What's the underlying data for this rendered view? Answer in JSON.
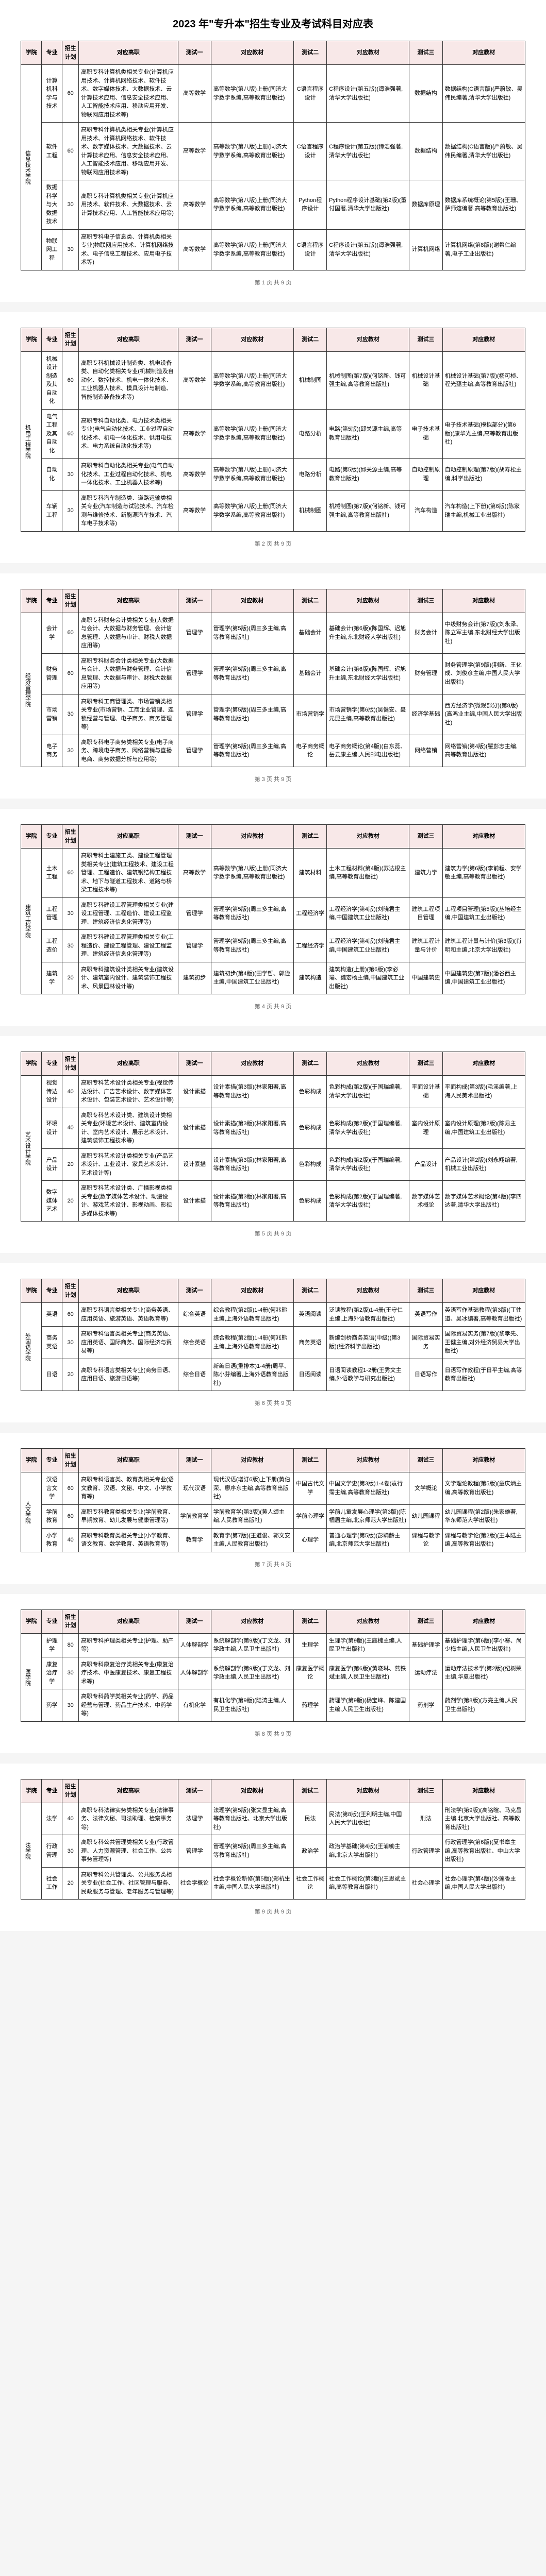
{
  "doc_title": "2023 年\"专升本\"招生专业及考试科目对应表",
  "headers": [
    "学院",
    "专业",
    "招生计划",
    "对应高职",
    "测试一",
    "对应教材",
    "测试二",
    "对应教材",
    "测试三",
    "对应教材"
  ],
  "page_label_prefix": "第 ",
  "page_label_suffix": " 页 共 9 页",
  "colors": {
    "header_bg": "#f8e8e8",
    "border": "#333333"
  },
  "tables": [
    {
      "page": 1,
      "school": "信息技术学院",
      "rows": [
        {
          "major": "计算机科学与技术",
          "plan": "60",
          "scope": "高职专科计算机类相关专业(计算机应用技术、计算机网络技术、软件技术、数字媒体技术、大数据技术、云计算技术应用、信息安全技术应用、人工智能技术应用、移动应用开发、物联网应用技术等)",
          "s1": "高等数学",
          "b1": "高等数学(第八版)上册(同济大学数学系编,高等教育出版社)",
          "s2": "C语言程序设计",
          "b2": "C程序设计(第五版)(谭浩强著,清华大学出版社)",
          "s3": "数据结构",
          "b3": "数据结构(C语言版)(严蔚敏、吴伟民编著,清华大学出版社)"
        },
        {
          "major": "软件工程",
          "plan": "60",
          "scope": "高职专科计算机类相关专业(计算机应用技术、计算机网络技术、软件技术、数字媒体技术、大数据技术、云计算技术应用、信息安全技术应用、人工智能技术应用、移动应用开发、物联网应用技术等)",
          "s1": "高等数学",
          "b1": "高等数学(第八版)上册(同济大学数学系编,高等教育出版社)",
          "s2": "C语言程序设计",
          "b2": "C程序设计(第五版)(谭浩强著,清华大学出版社)",
          "s3": "数据结构",
          "b3": "数据结构(C语言版)(严蔚敏、吴伟民编著,清华大学出版社)"
        },
        {
          "major": "数据科学与大数据技术",
          "plan": "30",
          "scope": "高职专科计算机类相关专业(计算机应用技术、软件技术、大数据技术、云计算技术应用、人工智能技术应用等)",
          "s1": "高等数学",
          "b1": "高等数学(第八版)上册(同济大学数学系编,高等教育出版社)",
          "s2": "Python程序设计",
          "b2": "Python程序设计基础(第2版)(董付国著,清华大学出版社)",
          "s3": "数据库原理",
          "b3": "数据库系统概论(第5版)(王珊、萨师煊编著,高等教育出版社)"
        },
        {
          "major": "物联网工程",
          "plan": "30",
          "scope": "高职专科电子信息类、计算机类相关专业(物联网应用技术、计算机网络技术、电子信息工程技术、应用电子技术等)",
          "s1": "高等数学",
          "b1": "高等数学(第八版)上册(同济大学数学系编,高等教育出版社)",
          "s2": "C语言程序设计",
          "b2": "C程序设计(第五版)(谭浩强著,清华大学出版社)",
          "s3": "计算机网络",
          "b3": "计算机网络(第8版)(谢希仁编著,电子工业出版社)"
        }
      ]
    },
    {
      "page": 2,
      "school": "机电工程学院",
      "rows": [
        {
          "major": "机械设计制造及其自动化",
          "plan": "60",
          "scope": "高职专科机械设计制造类、机电设备类、自动化类相关专业(机械制造及自动化、数控技术、机电一体化技术、工业机器人技术、模具设计与制造、智能制造装备技术等)",
          "s1": "高等数学",
          "b1": "高等数学(第八版)上册(同济大学数学系编,高等教育出版社)",
          "s2": "机械制图",
          "b2": "机械制图(第7版)(何铭新、钱可强主编,高等教育出版社)",
          "s3": "机械设计基础",
          "b3": "机械设计基础(第7版)(杨可桢、程光蕴主编,高等教育出版社)"
        },
        {
          "major": "电气工程及其自动化",
          "plan": "60",
          "scope": "高职专科自动化类、电力技术类相关专业(电气自动化技术、工业过程自动化技术、机电一体化技术、供用电技术、电力系统自动化技术等)",
          "s1": "高等数学",
          "b1": "高等数学(第八版)上册(同济大学数学系编,高等教育出版社)",
          "s2": "电路分析",
          "b2": "电路(第5版)(邱关源主编,高等教育出版社)",
          "s3": "电子技术基础",
          "b3": "电子技术基础(模拟部分)(第6版)(康华光主编,高等教育出版社)"
        },
        {
          "major": "自动化",
          "plan": "30",
          "scope": "高职专科自动化类相关专业(电气自动化技术、工业过程自动化技术、机电一体化技术、工业机器人技术等)",
          "s1": "高等数学",
          "b1": "高等数学(第八版)上册(同济大学数学系编,高等教育出版社)",
          "s2": "电路分析",
          "b2": "电路(第5版)(邱关源主编,高等教育出版社)",
          "s3": "自动控制原理",
          "b3": "自动控制原理(第7版)(胡寿松主编,科学出版社)"
        },
        {
          "major": "车辆工程",
          "plan": "30",
          "scope": "高职专科汽车制造类、道路运输类相关专业(汽车制造与试验技术、汽车检测与维修技术、新能源汽车技术、汽车电子技术等)",
          "s1": "高等数学",
          "b1": "高等数学(第八版)上册(同济大学数学系编,高等教育出版社)",
          "s2": "机械制图",
          "b2": "机械制图(第7版)(何铭新、钱可强主编,高等教育出版社)",
          "s3": "汽车构造",
          "b3": "汽车构造(上下册)(第6版)(陈家瑞主编,机械工业出版社)"
        }
      ]
    },
    {
      "page": 3,
      "school": "经济管理学院",
      "rows": [
        {
          "major": "会计学",
          "plan": "60",
          "scope": "高职专科财务会计类相关专业(大数据与会计、大数据与财务管理、会计信息管理、大数据与审计、财税大数据应用等)",
          "s1": "管理学",
          "b1": "管理学(第5版)(周三多主编,高等教育出版社)",
          "s2": "基础会计",
          "b2": "基础会计(第6版)(陈国辉、迟旭升主编,东北财经大学出版社)",
          "s3": "财务会计",
          "b3": "中级财务会计(第7版)(刘永泽、陈立军主编,东北财经大学出版社)"
        },
        {
          "major": "财务管理",
          "plan": "60",
          "scope": "高职专科财务会计类相关专业(大数据与会计、大数据与财务管理、会计信息管理、大数据与审计、财税大数据应用等)",
          "s1": "管理学",
          "b1": "管理学(第5版)(周三多主编,高等教育出版社)",
          "s2": "基础会计",
          "b2": "基础会计(第6版)(陈国辉、迟旭升主编,东北财经大学出版社)",
          "s3": "财务管理",
          "b3": "财务管理学(第9版)(荆新、王化成、刘俊彦主编,中国人民大学出版社)"
        },
        {
          "major": "市场营销",
          "plan": "30",
          "scope": "高职专科工商管理类、市场营销类相关专业(市场营销、工商企业管理、连锁经营与管理、电子商务、商务管理等)",
          "s1": "管理学",
          "b1": "管理学(第5版)(周三多主编,高等教育出版社)",
          "s2": "市场营销学",
          "b2": "市场营销学(第6版)(吴健安、聂元昆主编,高等教育出版社)",
          "s3": "经济学基础",
          "b3": "西方经济学(微观部分)(第8版)(高鸿业主编,中国人民大学出版社)"
        },
        {
          "major": "电子商务",
          "plan": "30",
          "scope": "高职专科电子商务类相关专业(电子商务、跨境电子商务、网络营销与直播电商、商务数据分析与应用等)",
          "s1": "管理学",
          "b1": "管理学(第5版)(周三多主编,高等教育出版社)",
          "s2": "电子商务概论",
          "b2": "电子商务概论(第4版)(白东蕊、岳云康主编,人民邮电出版社)",
          "s3": "网络营销",
          "b3": "网络营销(第4版)(瞿彭志主编,高等教育出版社)"
        }
      ]
    },
    {
      "page": 4,
      "school": "建筑工程学院",
      "rows": [
        {
          "major": "土木工程",
          "plan": "60",
          "scope": "高职专科土建施工类、建设工程管理类相关专业(建筑工程技术、建设工程管理、工程造价、建筑钢结构工程技术、地下与隧道工程技术、道路与桥梁工程技术等)",
          "s1": "高等数学",
          "b1": "高等数学(第八版)上册(同济大学数学系编,高等教育出版社)",
          "s2": "建筑材料",
          "b2": "土木工程材料(第4版)(苏达根主编,高等教育出版社)",
          "s3": "建筑力学",
          "b3": "建筑力学(第6版)(李前程、安学敏主编,高等教育出版社)"
        },
        {
          "major": "工程管理",
          "plan": "30",
          "scope": "高职专科建设工程管理类相关专业(建设工程管理、工程造价、建设工程监理、建筑经济信息化管理等)",
          "s1": "管理学",
          "b1": "管理学(第5版)(周三多主编,高等教育出版社)",
          "s2": "工程经济学",
          "b2": "工程经济学(第4版)(刘晓君主编,中国建筑工业出版社)",
          "s3": "建筑工程项目管理",
          "b3": "工程项目管理(第5版)(丛培经主编,中国建筑工业出版社)"
        },
        {
          "major": "工程造价",
          "plan": "30",
          "scope": "高职专科建设工程管理类相关专业(工程造价、建设工程管理、建设工程监理、建筑经济信息化管理等)",
          "s1": "管理学",
          "b1": "管理学(第5版)(周三多主编,高等教育出版社)",
          "s2": "工程经济学",
          "b2": "工程经济学(第4版)(刘晓君主编,中国建筑工业出版社)",
          "s3": "建筑工程计量与计价",
          "b3": "建筑工程计量与计价(第3版)(肖明和主编,北京大学出版社)"
        },
        {
          "major": "建筑学",
          "plan": "20",
          "scope": "高职专科建筑设计类相关专业(建筑设计、建筑室内设计、建筑装饰工程技术、风景园林设计等)",
          "s1": "建筑初步",
          "b1": "建筑初步(第4版)(田学哲、郭逊主编,中国建筑工业出版社)",
          "s2": "建筑构造",
          "b2": "建筑构造(上册)(第6版)(李必瑜、魏宏杨主编,中国建筑工业出版社)",
          "s3": "中国建筑史",
          "b3": "中国建筑史(第7版)(潘谷西主编,中国建筑工业出版社)"
        }
      ]
    },
    {
      "page": 5,
      "school": "艺术设计学院",
      "rows": [
        {
          "major": "视觉传达设计",
          "plan": "40",
          "scope": "高职专科艺术设计类相关专业(视觉传达设计、广告艺术设计、数字媒体艺术设计、包装艺术设计、艺术设计等)",
          "s1": "设计素描",
          "b1": "设计素描(第3版)(林家阳著,高等教育出版社)",
          "s2": "色彩构成",
          "b2": "色彩构成(第2版)(于国瑞编著,清华大学出版社)",
          "s3": "平面设计基础",
          "b3": "平面构成(第3版)(毛溪编著,上海人民美术出版社)"
        },
        {
          "major": "环境设计",
          "plan": "40",
          "scope": "高职专科艺术设计类、建筑设计类相关专业(环境艺术设计、建筑室内设计、室内艺术设计、展示艺术设计、建筑装饰工程技术等)",
          "s1": "设计素描",
          "b1": "设计素描(第3版)(林家阳著,高等教育出版社)",
          "s2": "色彩构成",
          "b2": "色彩构成(第2版)(于国瑞编著,清华大学出版社)",
          "s3": "室内设计原理",
          "b3": "室内设计原理(第2版)(陈易主编,中国建筑工业出版社)"
        },
        {
          "major": "产品设计",
          "plan": "20",
          "scope": "高职专科艺术设计类相关专业(产品艺术设计、工业设计、家具艺术设计、艺术设计等)",
          "s1": "设计素描",
          "b1": "设计素描(第3版)(林家阳著,高等教育出版社)",
          "s2": "色彩构成",
          "b2": "色彩构成(第2版)(于国瑞编著,清华大学出版社)",
          "s3": "产品设计",
          "b3": "产品设计(第2版)(刘永翔编著,机械工业出版社)"
        },
        {
          "major": "数字媒体艺术",
          "plan": "20",
          "scope": "高职专科艺术设计类、广播影视类相关专业(数字媒体艺术设计、动漫设计、游戏艺术设计、影视动画、影视多媒体技术等)",
          "s1": "设计素描",
          "b1": "设计素描(第3版)(林家阳著,高等教育出版社)",
          "s2": "色彩构成",
          "b2": "色彩构成(第2版)(于国瑞编著,清华大学出版社)",
          "s3": "数字媒体艺术概论",
          "b3": "数字媒体艺术概论(第4版)(李四达著,清华大学出版社)"
        }
      ]
    },
    {
      "page": 6,
      "school": "外国语学院",
      "rows": [
        {
          "major": "英语",
          "plan": "60",
          "scope": "高职专科语言类相关专业(商务英语、应用英语、旅游英语、英语教育等)",
          "s1": "综合英语",
          "b1": "综合教程(第2版)1-4册(何兆熊主编,上海外语教育出版社)",
          "s2": "英语阅读",
          "b2": "泛读教程(第2版)1-4册(王守仁主编,上海外语教育出版社)",
          "s3": "英语写作",
          "b3": "英语写作基础教程(第3版)(丁往道、吴冰编著,高等教育出版社)"
        },
        {
          "major": "商务英语",
          "plan": "30",
          "scope": "高职专科语言类相关专业(商务英语、应用英语、国际商务、国际经济与贸易等)",
          "s1": "综合英语",
          "b1": "综合教程(第2版)1-4册(何兆熊主编,上海外语教育出版社)",
          "s2": "商务英语",
          "b2": "新编剑桥商务英语(中级)(第3版)(经济科学出版社)",
          "s3": "国际贸易实务",
          "b3": "国际贸易实务(第7版)(黎孝先、王健主编,对外经济贸易大学出版社)"
        },
        {
          "major": "日语",
          "plan": "20",
          "scope": "高职专科语言类相关专业(商务日语、应用日语、旅游日语等)",
          "s1": "综合日语",
          "b1": "新编日语(重排本)1-4册(周平、陈小芬编著,上海外语教育出版社)",
          "s2": "日语阅读",
          "b2": "日语阅读教程1-2册(王秀文主编,外语教学与研究出版社)",
          "s3": "日语写作",
          "b3": "日语写作教程(于日平主编,高等教育出版社)"
        }
      ]
    },
    {
      "page": 7,
      "school": "人文学院",
      "rows": [
        {
          "major": "汉语言文学",
          "plan": "60",
          "scope": "高职专科语言类、教育类相关专业(语文教育、汉语、文秘、中文、小学教育等)",
          "s1": "现代汉语",
          "b1": "现代汉语(增订6版)上下册(黄伯荣、廖序东主编,高等教育出版社)",
          "s2": "中国古代文学",
          "b2": "中国文学史(第3版)1-4卷(袁行霈主编,高等教育出版社)",
          "s3": "文学概论",
          "b3": "文学理论教程(第5版)(童庆炳主编,高等教育出版社)"
        },
        {
          "major": "学前教育",
          "plan": "60",
          "scope": "高职专科教育类相关专业(学前教育、早期教育、幼儿发展与健康管理等)",
          "s1": "学前教育学",
          "b1": "学前教育学(第3版)(黄人颂主编,人民教育出版社)",
          "s2": "学前心理学",
          "b2": "学前儿童发展心理学(第3版)(陈帼眉主编,北京师范大学出版社)",
          "s3": "幼儿园课程",
          "b3": "幼儿园课程(第2版)(朱家雄著,华东师范大学出版社)"
        },
        {
          "major": "小学教育",
          "plan": "40",
          "scope": "高职专科教育类相关专业(小学教育、语文教育、数学教育、英语教育等)",
          "s1": "教育学",
          "b1": "教育学(第7版)(王道俊、郭文安主编,人民教育出版社)",
          "s2": "心理学",
          "b2": "普通心理学(第5版)(彭聃龄主编,北京师范大学出版社)",
          "s3": "课程与教学论",
          "b3": "课程与教学论(第2版)(王本陆主编,高等教育出版社)"
        }
      ]
    },
    {
      "page": 8,
      "school": "医学院",
      "rows": [
        {
          "major": "护理学",
          "plan": "80",
          "scope": "高职专科护理类相关专业(护理、助产等)",
          "s1": "人体解剖学",
          "b1": "系统解剖学(第9版)(丁文龙、刘学政主编,人民卫生出版社)",
          "s2": "生理学",
          "b2": "生理学(第9版)(王庭槐主编,人民卫生出版社)",
          "s3": "基础护理学",
          "b3": "基础护理学(第6版)(李小寒、尚少梅主编,人民卫生出版社)"
        },
        {
          "major": "康复治疗学",
          "plan": "30",
          "scope": "高职专科康复治疗类相关专业(康复治疗技术、中医康复技术、康复工程技术等)",
          "s1": "人体解剖学",
          "b1": "系统解剖学(第9版)(丁文龙、刘学政主编,人民卫生出版社)",
          "s2": "康复医学概论",
          "b2": "康复医学(第6版)(黄晓琳、燕铁斌主编,人民卫生出版社)",
          "s3": "运动疗法",
          "b3": "运动疗法技术学(第2版)(纪树荣主编,华夏出版社)"
        },
        {
          "major": "药学",
          "plan": "30",
          "scope": "高职专科药学类相关专业(药学、药品经营与管理、药品生产技术、中药学等)",
          "s1": "有机化学",
          "b1": "有机化学(第9版)(陆涛主编,人民卫生出版社)",
          "s2": "药理学",
          "b2": "药理学(第9版)(杨宝峰、陈建国主编,人民卫生出版社)",
          "s3": "药剂学",
          "b3": "药剂学(第8版)(方亮主编,人民卫生出版社)"
        }
      ]
    },
    {
      "page": 9,
      "school": "法学院",
      "rows": [
        {
          "major": "法学",
          "plan": "40",
          "scope": "高职专科法律实务类相关专业(法律事务、法律文秘、司法助理、检察事务等)",
          "s1": "法理学",
          "b1": "法理学(第5版)(张文显主编,高等教育出版社、北京大学出版社)",
          "s2": "民法",
          "b2": "民法(第8版)(王利明主编,中国人民大学出版社)",
          "s3": "刑法",
          "b3": "刑法学(第9版)(高铭暄、马克昌主编,北京大学出版社、高等教育出版社)"
        },
        {
          "major": "行政管理",
          "plan": "30",
          "scope": "高职专科公共管理类相关专业(行政管理、人力资源管理、社会工作、公共事务管理等)",
          "s1": "管理学",
          "b1": "管理学(第5版)(周三多主编,高等教育出版社)",
          "s2": "政治学",
          "b2": "政治学基础(第4版)(王浦劬主编,北京大学出版社)",
          "s3": "行政管理学",
          "b3": "行政管理学(第6版)(夏书章主编,高等教育出版社、中山大学出版社)"
        },
        {
          "major": "社会工作",
          "plan": "20",
          "scope": "高职专科公共管理类、公共服务类相关专业(社会工作、社区管理与服务、民政服务与管理、老年服务与管理等)",
          "s1": "社会学概论",
          "b1": "社会学概论新修(第5版)(郑杭生主编,中国人民大学出版社)",
          "s2": "社会工作概论",
          "b2": "社会工作概论(第3版)(王思斌主编,高等教育出版社)",
          "s3": "社会心理学",
          "b3": "社会心理学(第4版)(沙莲香主编,中国人民大学出版社)"
        }
      ]
    }
  ]
}
